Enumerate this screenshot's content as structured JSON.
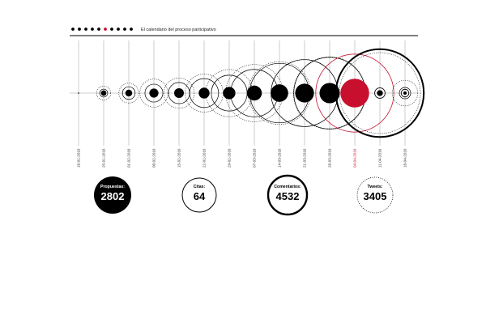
{
  "header": {
    "title": "El calendario del proceso participativo",
    "dots_total": 10,
    "dots_red_index": 5
  },
  "colors": {
    "accent": "#c8102e",
    "ink": "#000000",
    "grid": "#999999",
    "background": "#ffffff"
  },
  "chart_data": {
    "type": "bubble-timeline",
    "title": "El calendario del proceso participativo",
    "highlight_date": "04-04-2016",
    "dates": [
      "18-01-2016",
      "25-01-2016",
      "01-02-2016",
      "08-02-2016",
      "15-02-2016",
      "22-02-2016",
      "29-02-2016",
      "07-03-2016",
      "14-03-2016",
      "21-03-2016",
      "28-03-2016",
      "04-04-2016",
      "11-04-2016",
      "18-04-2016"
    ],
    "series": [
      {
        "name": "Propuestas",
        "values": [
          0,
          5,
          8,
          14,
          16,
          20,
          26,
          38,
          52,
          60,
          70,
          140,
          6,
          2
        ]
      },
      {
        "name": "Citas",
        "values": [
          0,
          0,
          1,
          2,
          2,
          4,
          5,
          6,
          6,
          7,
          8,
          10,
          8,
          5
        ]
      },
      {
        "name": "Comentarios",
        "values": [
          0,
          2,
          5,
          10,
          14,
          26,
          40,
          70,
          110,
          140,
          160,
          190,
          240,
          4
        ]
      },
      {
        "name": "Tweets",
        "values": [
          0,
          3,
          6,
          12,
          14,
          22,
          34,
          50,
          60,
          68,
          80,
          92,
          100,
          10
        ]
      }
    ]
  },
  "stats": [
    {
      "label": "Propuestas",
      "value": "2802"
    },
    {
      "label": "Citas",
      "value": "64"
    },
    {
      "label": "Comentarios",
      "value": "4532"
    },
    {
      "label": "Tweets",
      "value": "3405"
    }
  ]
}
